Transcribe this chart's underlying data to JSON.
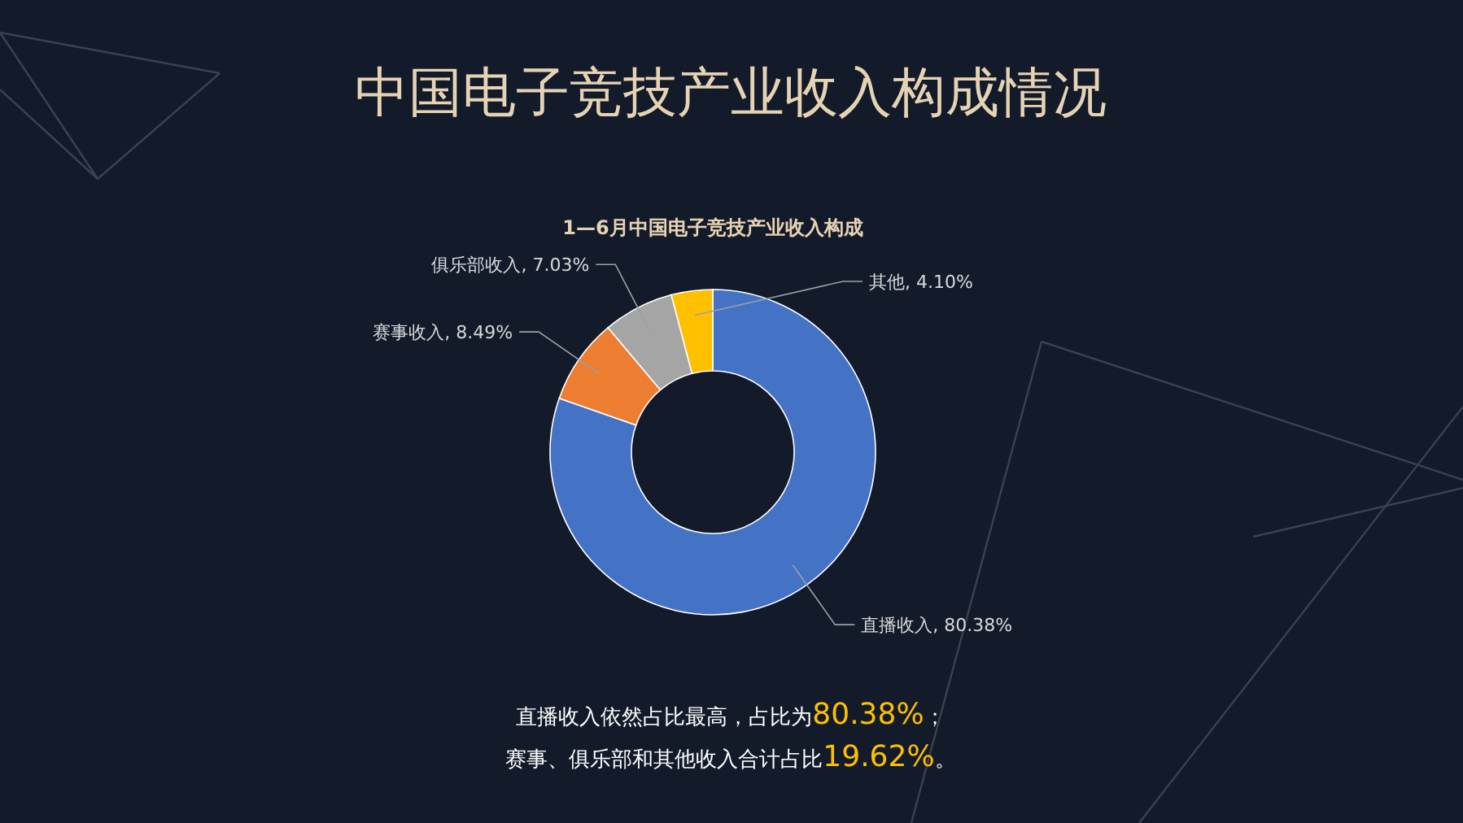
{
  "chart_data": {
    "type": "donut",
    "title": "中国电子竞技产业收入构成情况",
    "subtitle": "1—6月中国电子竞技产业收入构成",
    "categories": [
      "直播收入",
      "赛事收入",
      "俱乐部收入",
      "其他"
    ],
    "values": [
      80.38,
      8.49,
      7.03,
      4.1
    ],
    "value_labels": [
      "80.38%",
      "8.49%",
      "7.03%",
      "4.10%"
    ],
    "colors": [
      "#4472c4",
      "#ed7d31",
      "#a5a5a5",
      "#ffc000"
    ],
    "annotations": [
      "直播收入依然占比最高，占比为80.38%；",
      "赛事、俱乐部和其他收入合计占比19.62%。"
    ]
  }
}
